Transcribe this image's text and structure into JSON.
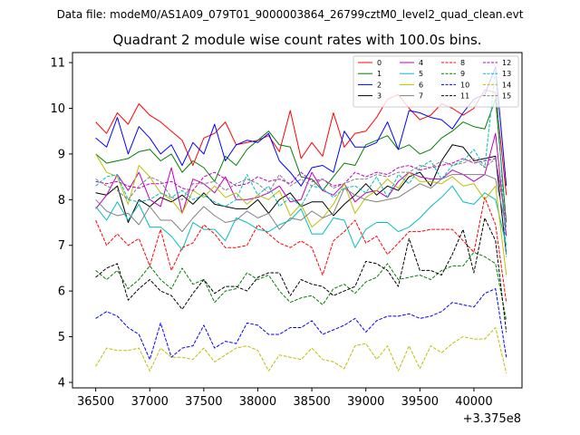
{
  "chart_data": {
    "type": "line",
    "supertitle": "Data file: modeM0/AS1A09_079T01_9000003864_26799cztM0_level2_quad_clean.evt",
    "title": "Quadrant 2 module wise count rates with 100.0s bins.",
    "xlabel": "",
    "ylabel": "",
    "x_offset_label": "+3.375e8",
    "xlim": [
      36285,
      40445
    ],
    "ylim": [
      3.88,
      11.22
    ],
    "x_ticks": [
      36500,
      37000,
      37500,
      38000,
      38500,
      39000,
      39500,
      40000
    ],
    "x_tick_labels": [
      "36500",
      "37000",
      "37500",
      "38000",
      "38500",
      "39000",
      "39500",
      "40000"
    ],
    "y_ticks": [
      4,
      5,
      6,
      7,
      8,
      9,
      10,
      11
    ],
    "y_tick_labels": [
      "4",
      "5",
      "6",
      "7",
      "8",
      "9",
      "10",
      "11"
    ],
    "legend_position": "top-right",
    "x": [
      36500,
      36600,
      36700,
      36800,
      36900,
      37000,
      37100,
      37200,
      37300,
      37400,
      37500,
      37600,
      37700,
      37800,
      37900,
      38000,
      38100,
      38200,
      38300,
      38400,
      38500,
      38600,
      38700,
      38800,
      38900,
      39000,
      39100,
      39200,
      39300,
      39400,
      39500,
      39600,
      39700,
      39800,
      39900,
      40000,
      40100,
      40200,
      40300
    ],
    "series": [
      {
        "name": "0",
        "color": "#ff0000",
        "dash": "solid",
        "values": [
          9.7,
          9.45,
          9.9,
          9.65,
          10.1,
          9.85,
          9.7,
          9.5,
          9.3,
          8.75,
          9.35,
          9.45,
          9.7,
          9.2,
          9.25,
          9.3,
          9.4,
          9.05,
          9.95,
          8.9,
          9.25,
          8.95,
          9.9,
          9.15,
          9.45,
          9.5,
          9.8,
          10.2,
          10.3,
          10.0,
          9.75,
          9.85,
          10.1,
          10.0,
          9.85,
          10.0,
          10.4,
          10.35,
          8.1
        ]
      },
      {
        "name": "1",
        "color": "#008000",
        "dash": "solid",
        "values": [
          9.0,
          8.8,
          8.85,
          8.9,
          9.05,
          9.1,
          8.85,
          9.0,
          8.6,
          8.85,
          8.7,
          8.4,
          8.95,
          8.75,
          9.1,
          9.3,
          9.5,
          9.2,
          9.15,
          8.5,
          8.45,
          8.2,
          8.5,
          8.8,
          8.75,
          9.2,
          9.3,
          9.4,
          9.1,
          9.2,
          9.0,
          9.1,
          9.35,
          9.5,
          9.7,
          9.6,
          9.55,
          10.2,
          7.5
        ]
      },
      {
        "name": "2",
        "color": "#0000ff",
        "dash": "solid",
        "values": [
          9.35,
          9.15,
          9.8,
          9.0,
          9.6,
          9.35,
          9.0,
          9.2,
          8.75,
          9.25,
          9.0,
          9.65,
          8.85,
          9.2,
          9.3,
          9.25,
          9.45,
          8.85,
          8.6,
          8.3,
          8.7,
          8.75,
          8.6,
          9.5,
          9.15,
          9.15,
          9.25,
          9.7,
          9.1,
          9.95,
          9.9,
          9.8,
          9.75,
          9.55,
          9.9,
          10.2,
          10.3,
          10.9,
          8.3
        ]
      },
      {
        "name": "3",
        "color": "#000000",
        "dash": "solid",
        "values": [
          8.15,
          8.1,
          8.3,
          7.5,
          8.0,
          7.85,
          8.05,
          7.95,
          8.1,
          7.9,
          8.15,
          7.9,
          7.85,
          7.8,
          7.8,
          8.0,
          7.7,
          8.0,
          8.15,
          7.85,
          7.95,
          7.95,
          7.65,
          7.9,
          8.1,
          8.35,
          8.1,
          8.3,
          8.2,
          8.5,
          8.6,
          8.3,
          8.85,
          9.2,
          9.15,
          8.85,
          8.9,
          8.95,
          6.8
        ]
      },
      {
        "name": "4",
        "color": "#bf00bf",
        "dash": "solid",
        "values": [
          7.8,
          8.1,
          8.55,
          8.2,
          8.6,
          8.0,
          7.85,
          8.7,
          7.7,
          8.45,
          8.35,
          8.15,
          8.5,
          8.0,
          8.0,
          8.05,
          8.15,
          8.3,
          7.95,
          8.0,
          8.6,
          8.2,
          8.1,
          8.35,
          7.95,
          8.15,
          8.2,
          8.05,
          8.4,
          8.6,
          8.5,
          8.45,
          8.45,
          8.65,
          8.55,
          8.4,
          8.55,
          9.45,
          7.2
        ]
      },
      {
        "name": "5",
        "color": "#00bfbf",
        "dash": "solid",
        "values": [
          7.85,
          7.55,
          7.95,
          7.55,
          7.9,
          7.4,
          7.4,
          7.2,
          6.9,
          7.5,
          7.35,
          7.35,
          7.1,
          7.6,
          7.5,
          7.35,
          7.3,
          7.45,
          7.55,
          7.8,
          7.25,
          7.25,
          7.6,
          7.55,
          6.95,
          7.35,
          7.5,
          7.5,
          7.3,
          7.4,
          7.6,
          7.85,
          8.05,
          8.3,
          7.95,
          7.9,
          8.15,
          8.0,
          7.0
        ]
      },
      {
        "name": "6",
        "color": "#bfbf00",
        "dash": "solid",
        "values": [
          9.0,
          8.6,
          8.5,
          7.9,
          8.75,
          8.5,
          8.15,
          8.0,
          7.7,
          8.2,
          8.05,
          8.3,
          8.05,
          8.15,
          7.9,
          8.1,
          8.0,
          8.2,
          7.65,
          7.9,
          7.4,
          7.6,
          7.9,
          8.35,
          7.7,
          8.05,
          8.2,
          8.45,
          8.25,
          8.6,
          8.4,
          8.4,
          8.35,
          8.5,
          8.3,
          8.35,
          8.0,
          8.3,
          6.35
        ]
      },
      {
        "name": "7",
        "color": "#808080",
        "dash": "solid",
        "values": [
          8.0,
          7.75,
          7.65,
          7.7,
          7.45,
          7.85,
          7.55,
          7.55,
          7.3,
          7.6,
          7.85,
          7.65,
          7.5,
          7.55,
          7.75,
          7.6,
          7.7,
          7.35,
          7.6,
          7.55,
          7.75,
          7.6,
          7.7,
          8.25,
          8.1,
          8.0,
          7.95,
          8.0,
          8.05,
          8.2,
          8.35,
          8.25,
          8.45,
          8.55,
          8.55,
          8.55,
          8.55,
          8.45,
          7.4
        ]
      },
      {
        "name": "8",
        "color": "#ff0000",
        "dash": "dashed",
        "values": [
          7.55,
          7.0,
          7.25,
          7.0,
          7.15,
          6.55,
          7.35,
          6.45,
          6.95,
          7.05,
          7.45,
          7.25,
          6.95,
          6.95,
          7.0,
          7.45,
          7.25,
          7.05,
          6.95,
          7.1,
          6.95,
          6.35,
          7.1,
          7.3,
          7.55,
          7.05,
          7.2,
          6.8,
          7.05,
          7.3,
          7.3,
          7.35,
          7.35,
          7.35,
          7.1,
          6.85,
          8.05,
          7.45,
          5.75
        ]
      },
      {
        "name": "9",
        "color": "#008000",
        "dash": "dashed",
        "values": [
          6.45,
          6.25,
          6.45,
          6.05,
          6.25,
          6.55,
          6.25,
          6.05,
          6.5,
          6.15,
          6.25,
          5.75,
          6.0,
          6.05,
          6.4,
          6.25,
          6.35,
          6.0,
          5.75,
          5.85,
          5.9,
          5.7,
          6.05,
          6.15,
          5.95,
          6.2,
          6.3,
          6.6,
          6.25,
          6.3,
          6.35,
          6.25,
          6.45,
          6.55,
          6.55,
          6.85,
          6.75,
          6.6,
          5.35
        ]
      },
      {
        "name": "10",
        "color": "#0000ff",
        "dash": "dashed",
        "values": [
          5.4,
          5.55,
          5.45,
          5.2,
          5.05,
          4.5,
          5.3,
          4.55,
          4.75,
          4.8,
          5.25,
          4.75,
          4.9,
          4.85,
          5.3,
          5.25,
          5.05,
          5.05,
          5.2,
          5.2,
          5.35,
          5.05,
          5.15,
          5.25,
          5.4,
          5.1,
          5.35,
          5.45,
          5.45,
          5.5,
          5.4,
          5.45,
          5.55,
          5.75,
          5.7,
          5.65,
          5.95,
          6.05,
          4.55
        ]
      },
      {
        "name": "11",
        "color": "#000000",
        "dash": "dashed",
        "values": [
          6.3,
          6.5,
          6.6,
          5.8,
          6.05,
          6.25,
          6.0,
          5.9,
          5.6,
          5.95,
          6.25,
          5.95,
          6.1,
          6.1,
          6.0,
          6.3,
          6.4,
          6.4,
          5.9,
          6.25,
          6.15,
          6.1,
          5.9,
          6.0,
          6.1,
          6.65,
          6.6,
          6.45,
          6.1,
          7.15,
          6.45,
          6.45,
          6.35,
          6.8,
          7.35,
          6.4,
          7.6,
          7.1,
          5.1
        ]
      },
      {
        "name": "12",
        "color": "#bf00bf",
        "dash": "dashed",
        "values": [
          8.4,
          8.35,
          8.4,
          8.3,
          8.25,
          8.35,
          8.35,
          8.4,
          8.25,
          8.2,
          8.5,
          8.6,
          8.45,
          8.3,
          8.35,
          8.5,
          8.4,
          8.45,
          8.35,
          8.6,
          8.4,
          8.45,
          8.3,
          8.35,
          8.6,
          8.5,
          8.6,
          8.55,
          8.7,
          8.75,
          8.65,
          8.7,
          8.75,
          8.8,
          8.9,
          8.8,
          8.85,
          8.9,
          7.5
        ]
      },
      {
        "name": "13",
        "color": "#00bfbf",
        "dash": "dashed",
        "values": [
          8.3,
          8.5,
          8.55,
          8.0,
          7.95,
          8.0,
          8.15,
          8.05,
          8.2,
          8.0,
          8.1,
          7.95,
          7.85,
          8.0,
          8.55,
          8.1,
          8.3,
          7.85,
          8.05,
          7.85,
          8.3,
          8.25,
          8.05,
          8.25,
          8.3,
          8.15,
          8.5,
          8.05,
          8.55,
          8.35,
          8.7,
          8.85,
          8.45,
          8.75,
          8.85,
          9.1,
          8.7,
          10.85,
          6.75
        ]
      },
      {
        "name": "14",
        "color": "#bfbf00",
        "dash": "dashed",
        "values": [
          4.35,
          4.75,
          4.7,
          4.7,
          4.75,
          4.25,
          4.75,
          4.55,
          4.55,
          4.5,
          4.75,
          4.45,
          4.6,
          4.75,
          4.8,
          4.7,
          4.25,
          4.6,
          4.55,
          4.5,
          4.75,
          4.5,
          4.45,
          4.3,
          4.8,
          4.85,
          4.5,
          4.8,
          4.25,
          4.8,
          4.3,
          4.8,
          4.65,
          4.85,
          5.0,
          4.95,
          4.95,
          5.2,
          4.2
        ]
      },
      {
        "name": "15",
        "color": "#808080",
        "dash": "dashed",
        "values": [
          8.45,
          8.3,
          8.2,
          8.0,
          8.3,
          8.5,
          8.4,
          8.05,
          8.0,
          8.35,
          8.35,
          8.4,
          8.2,
          8.35,
          8.45,
          8.35,
          8.15,
          8.55,
          8.3,
          8.45,
          8.3,
          8.45,
          8.25,
          8.35,
          8.45,
          8.45,
          8.55,
          8.5,
          8.6,
          8.6,
          8.75,
          8.7,
          8.85,
          8.75,
          8.8,
          8.9,
          8.7,
          8.9,
          7.6
        ]
      }
    ]
  }
}
